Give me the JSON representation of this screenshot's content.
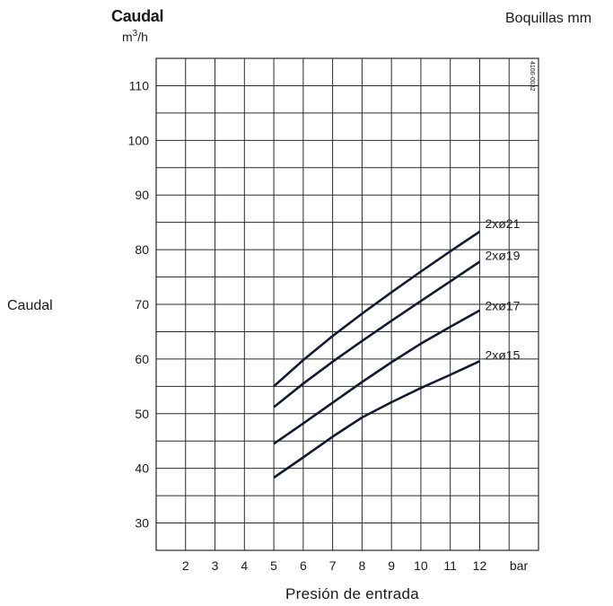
{
  "header": {
    "title": "Caudal",
    "unit_base": "m",
    "unit_exp": "3",
    "unit_tail": "/h",
    "nozzles_label": "Boquillas mm",
    "side_label": "Caudal",
    "drawing_code": "4106-0032"
  },
  "chart_data": {
    "type": "line",
    "title": "Caudal",
    "ylabel": "m3/h",
    "xlabel": "Presión de entrada",
    "x_unit_label": "bar",
    "xlim": [
      1,
      14
    ],
    "ylim": [
      25,
      115
    ],
    "x_ticks": [
      2,
      3,
      4,
      5,
      6,
      7,
      8,
      9,
      10,
      11,
      12
    ],
    "y_ticks": [
      30,
      40,
      50,
      60,
      70,
      80,
      90,
      100,
      110
    ],
    "grid": true,
    "series": [
      {
        "name": "2xø21",
        "x": [
          5,
          6,
          7,
          8,
          9,
          10,
          11,
          12
        ],
        "y": [
          55,
          59.8,
          64.2,
          68.3,
          72.2,
          76,
          79.7,
          83.3
        ]
      },
      {
        "name": "2xø19",
        "x": [
          5,
          6,
          7,
          8,
          9,
          10,
          11,
          12
        ],
        "y": [
          51.2,
          55.5,
          59.5,
          63.3,
          67,
          70.6,
          74.2,
          77.8
        ]
      },
      {
        "name": "2xø17",
        "x": [
          5,
          6,
          7,
          8,
          9,
          10,
          11,
          12
        ],
        "y": [
          44.5,
          48.2,
          52,
          55.8,
          59.4,
          62.8,
          65.9,
          68.9
        ]
      },
      {
        "name": "2xø15",
        "x": [
          5,
          6,
          7,
          8,
          9,
          10,
          11,
          12
        ],
        "y": [
          38.3,
          42,
          45.8,
          49.3,
          52.1,
          54.7,
          57.1,
          59.6
        ]
      }
    ]
  }
}
